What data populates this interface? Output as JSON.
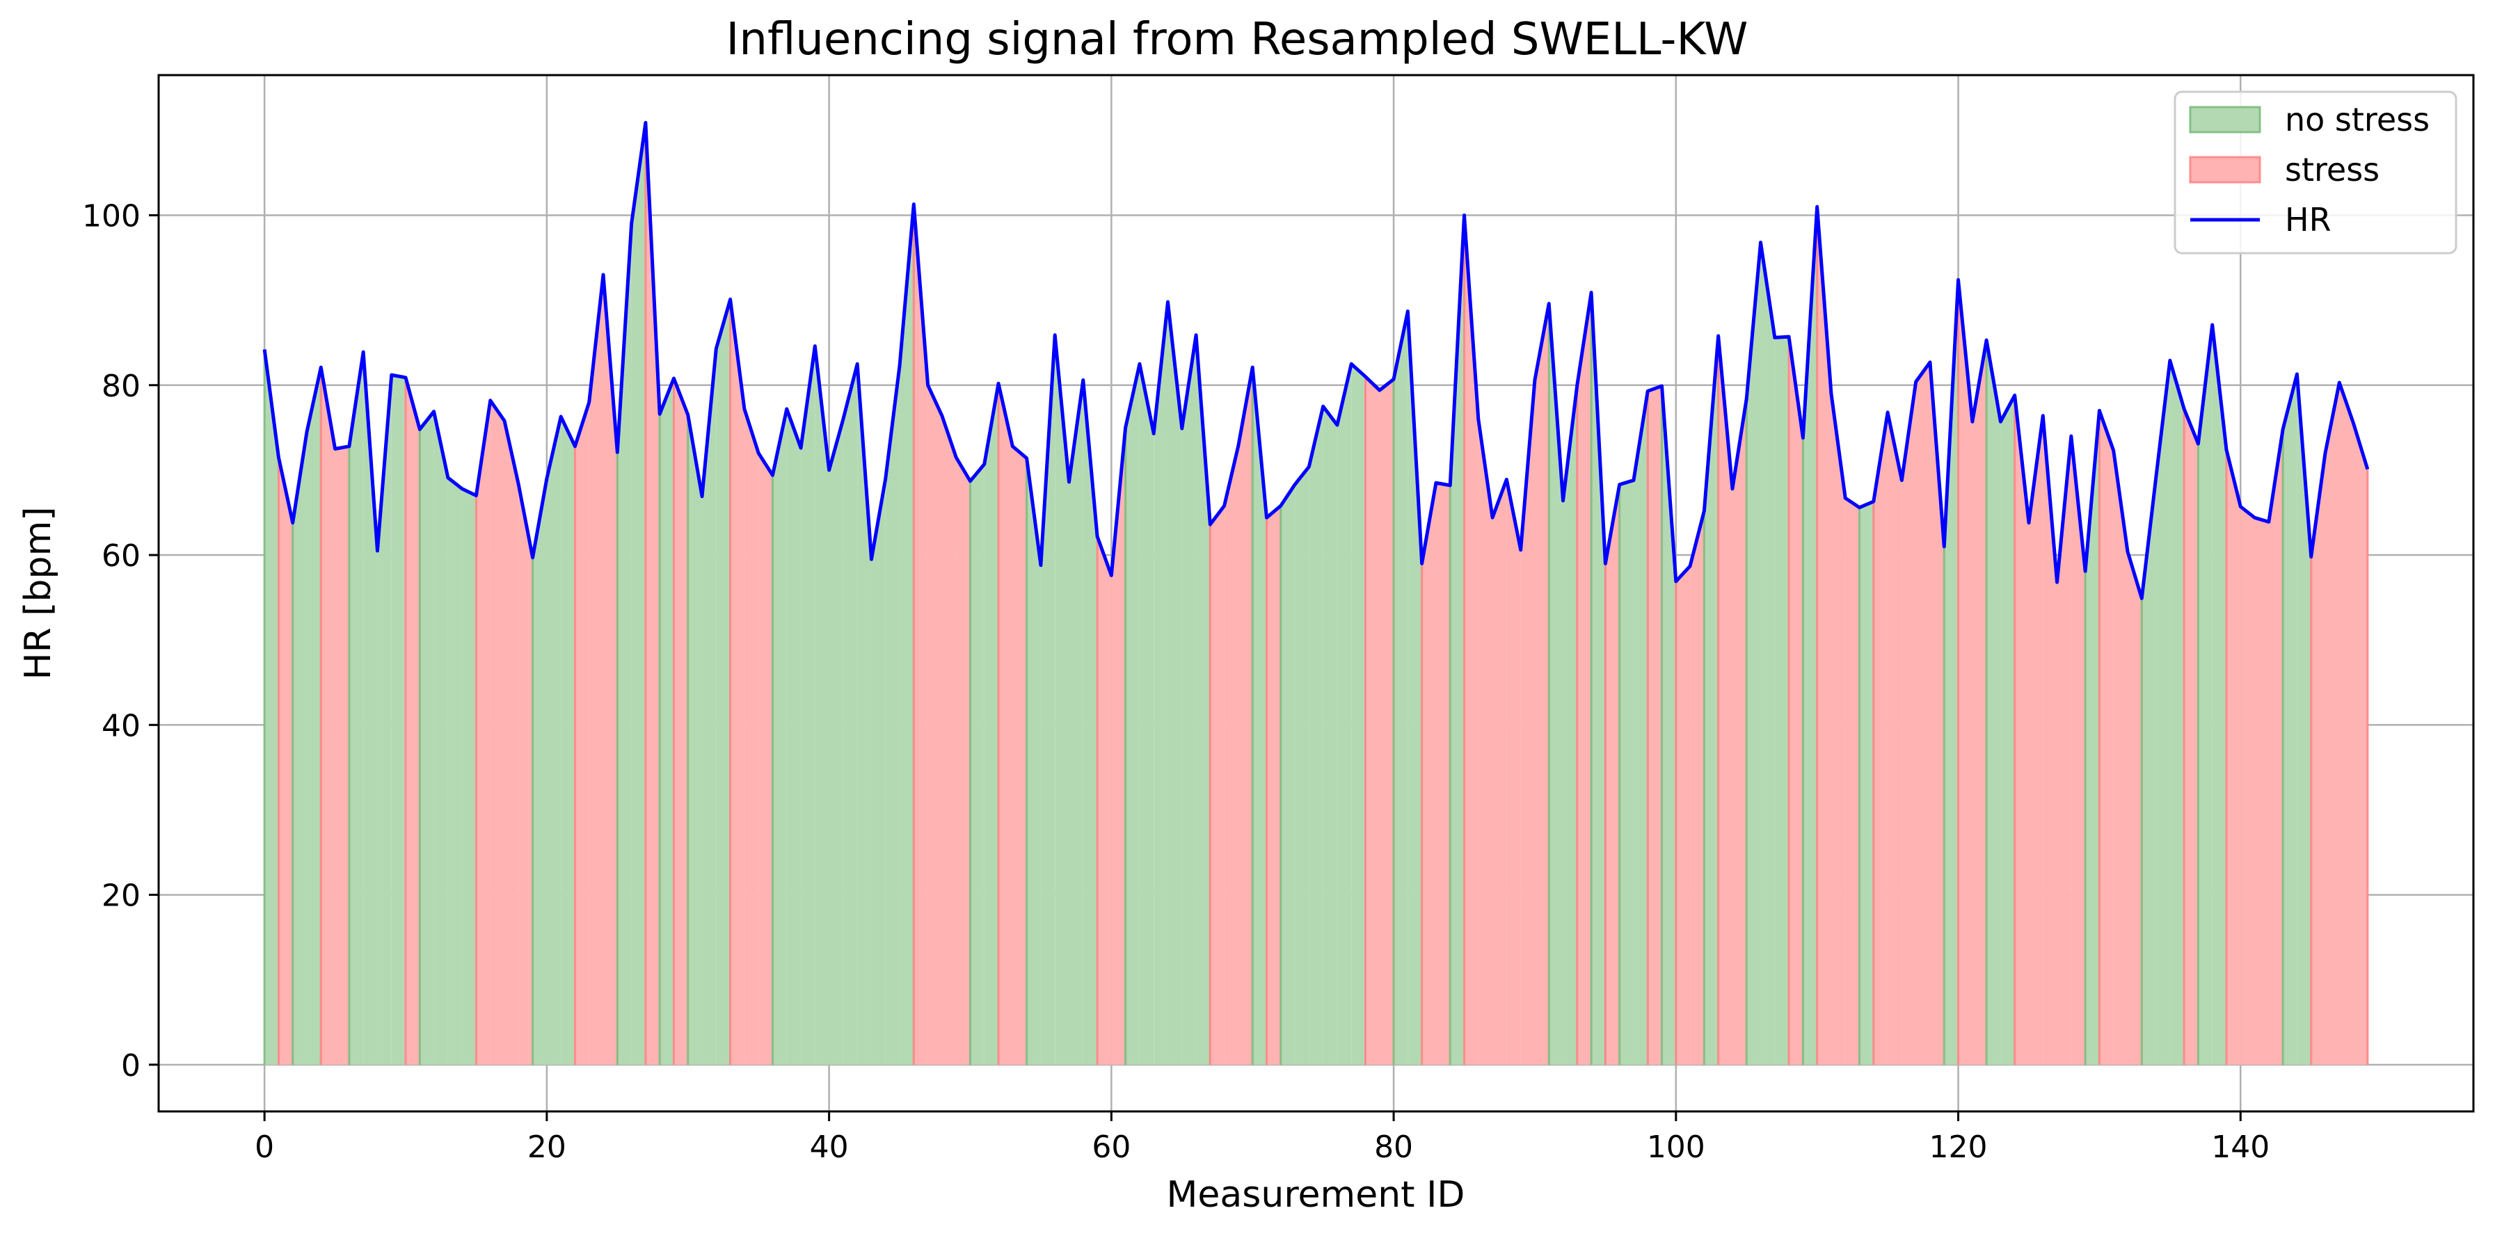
{
  "chart_data": {
    "type": "line",
    "title": "Influencing signal from Resampled SWELL-KW",
    "xlabel": "Measurement ID",
    "ylabel": "HR [bpm]",
    "xlim": [
      -7.5,
      156.5
    ],
    "ylim": [
      -5.5,
      116.5
    ],
    "xticks": [
      0,
      20,
      40,
      60,
      80,
      100,
      120,
      140
    ],
    "yticks": [
      0,
      20,
      40,
      60,
      80,
      100
    ],
    "grid": true,
    "legend_position": "top-right",
    "legend": [
      {
        "key": "no_stress",
        "label": "no stress"
      },
      {
        "key": "stress",
        "label": "stress"
      },
      {
        "key": "hr",
        "label": "HR"
      }
    ],
    "colors": {
      "no_stress_fill": "#b3d9b3",
      "no_stress_edge": "#86c086",
      "stress_fill": "#ffb3b3",
      "stress_edge": "#ff8c8c",
      "hr_line": "#0000ff",
      "grid": "#b0b0b0"
    },
    "series": [
      {
        "name": "HR",
        "x_start": 0,
        "values": [
          84.2,
          71.5,
          63.8,
          74.5,
          82.1,
          72.5,
          72.8,
          83.9,
          60.5,
          81.2,
          80.9,
          74.8,
          76.9,
          69.1,
          67.8,
          67.0,
          78.2,
          75.8,
          68.3,
          59.7,
          69.0,
          76.3,
          72.8,
          78.0,
          93.0,
          72.1,
          99.0,
          110.9,
          76.6,
          80.8,
          76.5,
          66.9,
          84.3,
          90.1,
          77.2,
          72.0,
          69.4,
          77.2,
          72.6,
          84.6,
          70.0,
          76.0,
          82.5,
          59.5,
          69.0,
          82.3,
          101.3,
          80.0,
          76.4,
          71.5,
          68.7,
          70.7,
          80.2,
          72.8,
          71.4,
          58.8,
          85.9,
          68.6,
          80.6,
          62.2,
          57.6,
          75.0,
          82.5,
          74.3,
          89.8,
          74.9,
          85.9,
          63.6,
          65.8,
          72.9,
          82.1,
          64.4,
          65.8,
          68.3,
          70.4,
          77.5,
          75.3,
          82.5,
          81.0,
          79.4,
          80.7,
          88.7,
          59.0,
          68.5,
          68.2,
          100.0,
          76.0,
          64.4,
          68.9,
          60.6,
          80.6,
          89.6,
          66.4,
          80.0,
          90.9,
          59.0,
          68.3,
          68.8,
          79.3,
          79.9,
          56.9,
          58.7,
          65.2,
          85.8,
          67.8,
          78.4,
          96.8,
          85.6,
          85.7,
          73.8,
          101.0,
          79.0,
          66.7,
          65.6,
          66.3,
          76.8,
          68.8,
          80.4,
          82.7,
          61.0,
          92.4,
          75.7,
          85.3,
          75.7,
          78.8,
          63.8,
          76.4,
          56.8,
          74.0,
          58.1,
          77.0,
          72.3,
          60.4,
          54.9,
          69.0,
          82.9,
          77.2,
          73.1,
          87.1,
          72.4,
          65.7,
          64.4,
          63.9,
          74.8,
          81.3,
          59.8,
          72.0,
          80.3,
          75.5,
          70.1
        ]
      }
    ],
    "stress_labels": [
      0,
      1,
      0,
      0,
      1,
      1,
      0,
      0,
      0,
      0,
      1,
      0,
      0,
      0,
      0,
      1,
      1,
      1,
      1,
      0,
      0,
      0,
      1,
      1,
      1,
      0,
      0,
      1,
      0,
      1,
      0,
      0,
      0,
      1,
      1,
      1,
      0,
      0,
      0,
      0,
      0,
      0,
      0,
      0,
      0,
      0,
      1,
      1,
      1,
      1,
      0,
      0,
      1,
      1,
      0,
      0,
      0,
      0,
      0,
      1,
      1,
      0,
      0,
      0,
      0,
      0,
      0,
      1,
      1,
      1,
      0,
      1,
      0,
      0,
      0,
      0,
      0,
      0,
      1,
      1,
      0,
      0,
      1,
      1,
      0,
      1,
      1,
      1,
      1,
      1,
      1,
      0,
      0,
      1,
      0,
      1,
      0,
      0,
      1,
      0,
      1,
      1,
      0,
      1,
      1,
      0,
      0,
      0,
      1,
      0,
      1,
      1,
      1,
      0,
      1,
      1,
      1,
      1,
      1,
      0,
      1,
      1,
      0,
      0,
      1,
      1,
      1,
      1,
      1,
      0,
      1,
      1,
      1,
      0,
      0,
      0,
      1,
      0,
      0,
      1,
      1,
      1,
      1,
      0,
      0,
      1,
      1,
      1,
      1,
      0
    ]
  }
}
